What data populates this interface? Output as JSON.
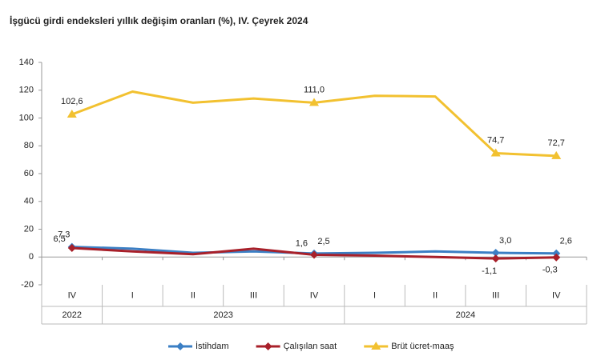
{
  "chart_data": {
    "type": "line",
    "title": "İşgücü girdi endeksleri yıllık değişim oranları (%), IV. Çeyrek 2024",
    "category_groups": [
      {
        "label": "2022",
        "categories": [
          "IV"
        ]
      },
      {
        "label": "2023",
        "categories": [
          "I",
          "II",
          "III",
          "IV"
        ]
      },
      {
        "label": "2024",
        "categories": [
          "I",
          "II",
          "III",
          "IV"
        ]
      }
    ],
    "series": [
      {
        "name": "İstihdam",
        "color": "#3b7fc4",
        "marker": "diamond",
        "values": [
          7.3,
          6.0,
          3.0,
          4.0,
          2.5,
          3.0,
          4.0,
          3.0,
          2.6
        ],
        "value_labels": [
          "7,3",
          null,
          null,
          null,
          "2,5",
          null,
          null,
          "3,0",
          "2,6"
        ]
      },
      {
        "name": "Çalışılan saat",
        "color": "#a8202a",
        "marker": "diamond",
        "values": [
          6.5,
          4.0,
          2.0,
          6.0,
          1.6,
          1.0,
          0.0,
          -1.1,
          -0.3
        ],
        "value_labels": [
          "6,5",
          null,
          null,
          null,
          "1,6",
          null,
          null,
          "-1,1",
          "-0,3"
        ]
      },
      {
        "name": "Brüt ücret-maaş",
        "color": "#f2c130",
        "marker": "triangle",
        "values": [
          102.6,
          119.0,
          111.0,
          114.0,
          111.0,
          116.0,
          115.5,
          74.7,
          72.7
        ],
        "value_labels": [
          "102,6",
          null,
          null,
          null,
          "111,0",
          null,
          null,
          "74,7",
          "72,7"
        ]
      }
    ],
    "ylim": [
      -20,
      140
    ],
    "yticks": [
      -20,
      0,
      20,
      40,
      60,
      80,
      100,
      120,
      140
    ],
    "grid": false,
    "legend": "bottom"
  }
}
